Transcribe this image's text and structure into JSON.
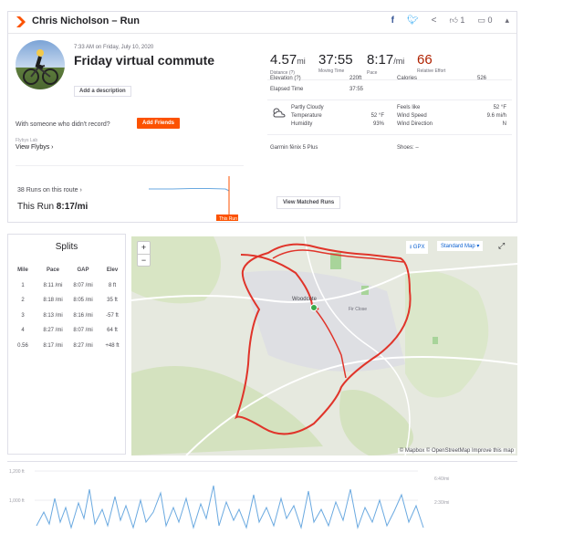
{
  "header": {
    "title": "Chris Nicholson – Run",
    "kudos_count": "1",
    "comments_count": "0"
  },
  "activity": {
    "date": "7:33 AM on Friday, July 10, 2020",
    "name": "Friday virtual commute",
    "add_description": "Add a description"
  },
  "social": {
    "with_someone": "With someone who didn't record?",
    "add_friends": "Add Friends",
    "flybys_caption": "Flybys Lab",
    "view_flybys": "View Flybys"
  },
  "primary_stats": {
    "distance": {
      "value": "4.57",
      "unit": "mi",
      "label": "Distance (?)"
    },
    "moving_time": {
      "value": "37:55",
      "label": "Moving Time"
    },
    "pace": {
      "value": "8:17",
      "unit": "/mi",
      "label": "Pace"
    },
    "relative_effort": {
      "value": "66",
      "label": "Relative Effort"
    }
  },
  "secondary_stats": {
    "elevation": {
      "label": "Elevation (?)",
      "value": "220ft"
    },
    "elapsed_time": {
      "label": "Elapsed Time",
      "value": "37:55"
    },
    "calories": {
      "label": "Calories",
      "value": "526"
    }
  },
  "weather": {
    "condition": "Partly Cloudy",
    "temperature": {
      "label": "Temperature",
      "value": "52 °F"
    },
    "humidity": {
      "label": "Humidity",
      "value": "93%"
    },
    "feels_like": {
      "label": "Feels like",
      "value": "52 °F"
    },
    "wind_speed": {
      "label": "Wind Speed",
      "value": "9.6 mi/h"
    },
    "wind_direction": {
      "label": "Wind Direction",
      "value": "N"
    }
  },
  "device": {
    "name": "Garmin fēnix 5 Plus",
    "shoes_label": "Shoes: –"
  },
  "matched": {
    "runs_on_route": "38 Runs on this route",
    "this_run_label": "This Run",
    "this_run_pace": "8:17/mi",
    "view_matched": "View Matched Runs",
    "marker_label": "This Run"
  },
  "splits": {
    "title": "Splits",
    "headers": [
      "Mile",
      "Pace",
      "GAP",
      "Elev"
    ],
    "rows": [
      [
        "1",
        "8:11 /mi",
        "8:07 /mi",
        "8 ft"
      ],
      [
        "2",
        "8:18 /mi",
        "8:05 /mi",
        "35 ft"
      ],
      [
        "3",
        "8:13 /mi",
        "8:16 /mi",
        "-57 ft"
      ],
      [
        "4",
        "8:27 /mi",
        "8:07 /mi",
        "64 ft"
      ],
      [
        "0.56",
        "8:17 /mi",
        "8:27 /mi",
        "+48 ft"
      ]
    ]
  },
  "map": {
    "gpx_label": "GPX",
    "style_label": "Standard Map",
    "place_woodcote": "Woodcote",
    "place_close": "Fir Close",
    "attribution": "© Mapbox © OpenStreetMap Improve this map",
    "route_color": "#e0342a"
  },
  "elevation_chart": {
    "y_labels": [
      "1,200 ft",
      "1,000 ft"
    ],
    "pace_labels": [
      "6:40/mi",
      "2:30/mi"
    ]
  },
  "colors": {
    "brand": "#fc5200",
    "relative_effort": "#b02200",
    "link": "#0a60d0"
  }
}
